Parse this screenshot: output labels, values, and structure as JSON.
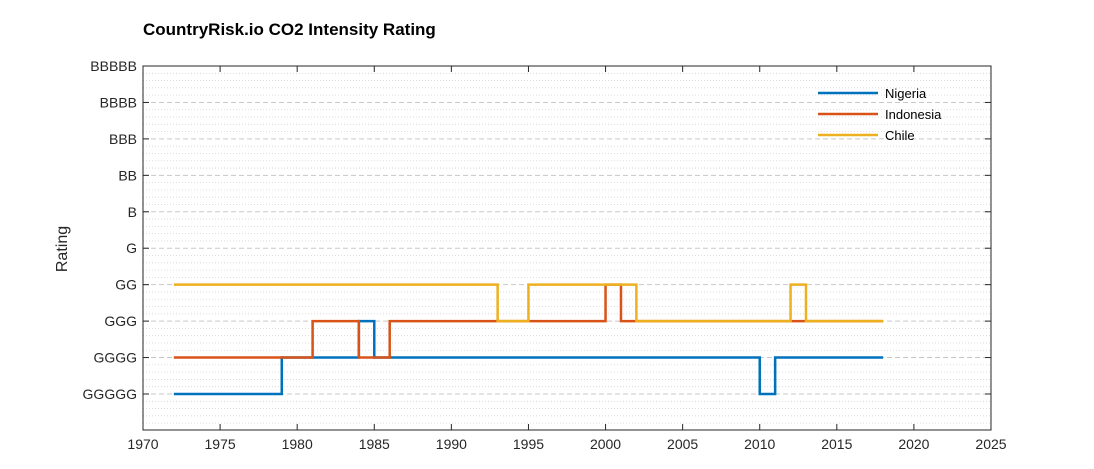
{
  "chart_data": {
    "type": "line",
    "step": true,
    "title": "CountryRisk.io CO2 Intensity Rating",
    "xlabel": "",
    "ylabel": "Rating",
    "xlim": [
      1970,
      2025
    ],
    "x_ticks": [
      1970,
      1975,
      1980,
      1985,
      1990,
      1995,
      2000,
      2005,
      2010,
      2015,
      2020,
      2025
    ],
    "y_categories": [
      "GGGGG",
      "GGGG",
      "GGG",
      "GG",
      "G",
      "B",
      "BB",
      "BBB",
      "BBBB",
      "BBBBB"
    ],
    "grid": true,
    "minor_grid": true,
    "legend_position": "top-right",
    "series": [
      {
        "name": "Nigeria",
        "color": "#0072BD",
        "x": [
          1972,
          1979,
          1981,
          1984,
          1985,
          2010,
          2011,
          2018
        ],
        "y": [
          "GGGGG",
          "GGGG",
          "GGGG",
          "GGG",
          "GGGG",
          "GGGGG",
          "GGGG",
          "GGGG"
        ]
      },
      {
        "name": "Indonesia",
        "color": "#D95319",
        "x": [
          1972,
          1981,
          1984,
          1986,
          2000,
          2001,
          2002,
          2018
        ],
        "y": [
          "GGGG",
          "GGG",
          "GGGG",
          "GGG",
          "GG",
          "GGG",
          "GGG",
          "GGG"
        ]
      },
      {
        "name": "Chile",
        "color": "#EDB120",
        "x": [
          1972,
          1993,
          1995,
          2002,
          2012,
          2013,
          2018
        ],
        "y": [
          "GG",
          "GGG",
          "GG",
          "GGG",
          "GG",
          "GGG",
          "GGG"
        ]
      }
    ]
  }
}
